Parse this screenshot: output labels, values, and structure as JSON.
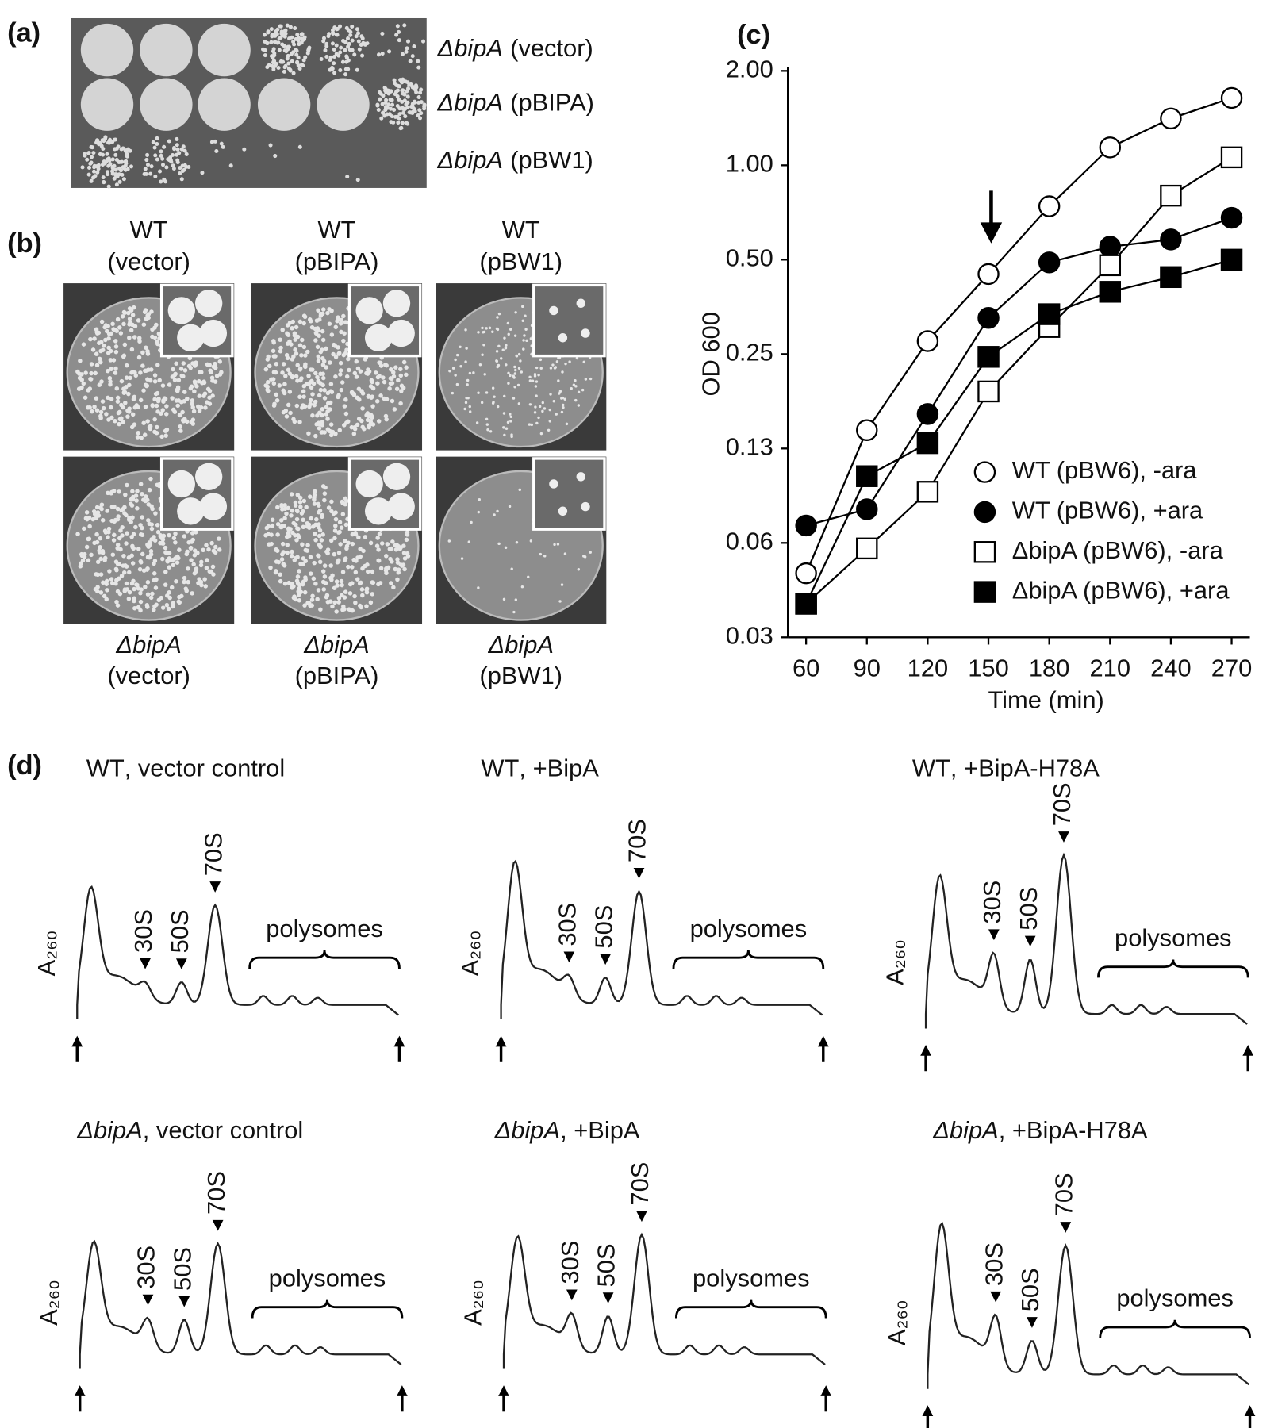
{
  "panel_a": {
    "label": "(a)",
    "rows": [
      {
        "strain": "ΔbipA",
        "plasmid": "(vector)"
      },
      {
        "strain": "ΔbipA",
        "plasmid": "(pBIPA)"
      },
      {
        "strain": "ΔbipA",
        "plasmid": "(pBW1)"
      }
    ]
  },
  "panel_b": {
    "label": "(b)",
    "top": [
      [
        "WT",
        "(vector)"
      ],
      [
        "WT",
        "(pBIPA)"
      ],
      [
        "WT",
        "(pBW1)"
      ]
    ],
    "bottom": [
      [
        "ΔbipA",
        "(vector)"
      ],
      [
        "ΔbipA",
        "(pBIPA)"
      ],
      [
        "ΔbipA",
        "(pBW1)"
      ]
    ]
  },
  "chart_data": {
    "type": "line",
    "label": "(c)",
    "x_label": "Time (min)",
    "y_label": "OD 600",
    "x": [
      60,
      90,
      120,
      150,
      180,
      210,
      240,
      270
    ],
    "xlim": [
      51,
      279
    ],
    "xticks": [
      60,
      90,
      120,
      150,
      180,
      210,
      240,
      270
    ],
    "ylim": [
      0.03125,
      2
    ],
    "yscale": "log",
    "yticks": [
      {
        "value": 0.03125,
        "label": "0.03"
      },
      {
        "value": 0.0625,
        "label": "0.06"
      },
      {
        "value": 0.125,
        "label": "0.13"
      },
      {
        "value": 0.25,
        "label": "0.25"
      },
      {
        "value": 0.5,
        "label": "0.50"
      },
      {
        "value": 1,
        "label": "1.00"
      },
      {
        "value": 2,
        "label": "2.00"
      }
    ],
    "series": [
      {
        "name": "WT (pBW6), -ara",
        "color": "#000000",
        "marker": "circle",
        "marker_fill": "#ffffff",
        "values": [
          0.05,
          0.143,
          0.275,
          0.45,
          0.74,
          1.14,
          1.41,
          1.64
        ]
      },
      {
        "name": "WT (pBW6), +ara",
        "color": "#000000",
        "marker": "circle",
        "marker_fill": "#000000",
        "values": [
          0.071,
          0.08,
          0.161,
          0.326,
          0.49,
          0.55,
          0.58,
          0.68
        ]
      },
      {
        "name": "ΔbipA (pBW6), -ara",
        "color": "#000000",
        "marker": "square",
        "marker_fill": "#ffffff",
        "values": [
          0.04,
          0.06,
          0.091,
          0.19,
          0.305,
          0.48,
          0.8,
          1.06
        ]
      },
      {
        "name": "ΔbipA (pBW6), +ara",
        "color": "#000000",
        "marker": "square",
        "marker_fill": "#000000",
        "values": [
          0.04,
          0.102,
          0.13,
          0.245,
          0.335,
          0.395,
          0.44,
          0.5
        ]
      }
    ]
  },
  "panel_d": {
    "label": "(d)",
    "profiles": [
      {
        "title_strain": "WT",
        "title_rest": ", vector control",
        "axis_label": "A₂₆₀",
        "peaks": [
          "30S",
          "50S",
          "70S"
        ],
        "region": "polysomes"
      },
      {
        "title_strain": "WT",
        "title_rest": ", +BipA",
        "axis_label": "A₂₆₀",
        "peaks": [
          "30S",
          "50S",
          "70S"
        ],
        "region": "polysomes"
      },
      {
        "title_strain": "WT",
        "title_rest": ", +BipA-H78A",
        "axis_label": "A₂₆₀",
        "peaks": [
          "30S",
          "50S",
          "70S"
        ],
        "region": "polysomes"
      },
      {
        "title_strain": "ΔbipA",
        "title_rest": ", vector control",
        "axis_label": "A₂₆₀",
        "peaks": [
          "30S",
          "50S",
          "70S"
        ],
        "region": "polysomes"
      },
      {
        "title_strain": "ΔbipA",
        "title_rest": ", +BipA",
        "axis_label": "A₂₆₀",
        "peaks": [
          "30S",
          "50S",
          "70S"
        ],
        "region": "polysomes"
      },
      {
        "title_strain": "ΔbipA",
        "title_rest": ", +BipA-H78A",
        "axis_label": "A₂₆₀",
        "peaks": [
          "30S",
          "50S",
          "70S"
        ],
        "region": "polysomes"
      }
    ]
  }
}
